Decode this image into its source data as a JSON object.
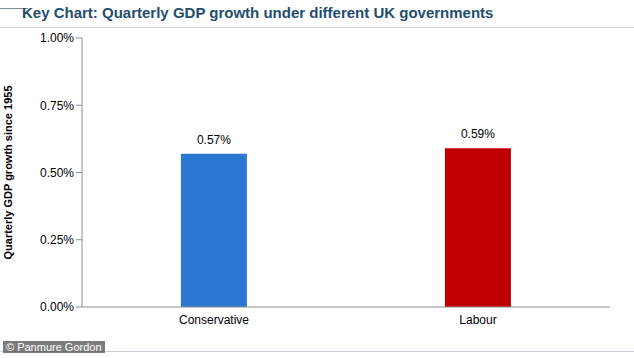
{
  "chart_data": {
    "type": "bar",
    "title": "Key Chart: Quarterly GDP growth under different UK governments",
    "y_label": "Quarterly GDP growth since 1955",
    "categories": [
      "Conservative",
      "Labour"
    ],
    "values": [
      0.57,
      0.59
    ],
    "value_labels": [
      "0.57%",
      "0.59%"
    ],
    "colors": [
      "#2a78d2",
      "#c00000"
    ],
    "data_labels": true,
    "ylim": [
      0,
      1
    ],
    "yticks": [
      {
        "value": 0,
        "label": "0.00%"
      },
      {
        "value": 0.25,
        "label": "0.25%"
      },
      {
        "value": 0.5,
        "label": "0.50%"
      },
      {
        "value": 0.75,
        "label": "0.75%"
      },
      {
        "value": 1,
        "label": "1.00%"
      }
    ],
    "grid": false,
    "source": "© Panmure Gordon"
  }
}
